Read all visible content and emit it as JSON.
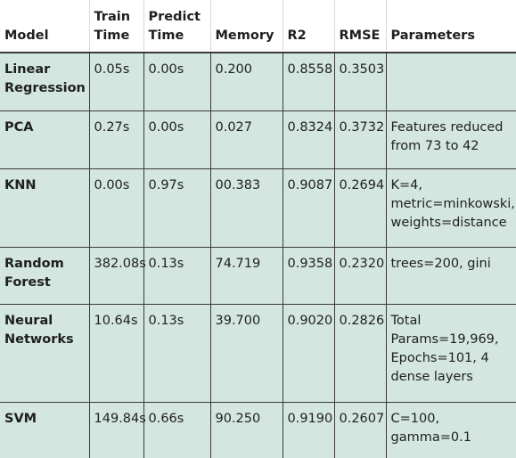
{
  "table": {
    "columns": {
      "model": "Model",
      "train_time": "Train Time",
      "predict_time": "Predict Time",
      "memory": "Memory",
      "r2": "R2",
      "rmse": "RMSE",
      "parameters": "Parameters"
    },
    "rows": [
      {
        "model": "Linear Regression",
        "train_time": "0.05s",
        "predict_time": "0.00s",
        "memory": "0.200",
        "r2": "0.8558",
        "rmse": "0.3503",
        "parameters": ""
      },
      {
        "model": "PCA",
        "train_time": "0.27s",
        "predict_time": "0.00s",
        "memory": "0.027",
        "r2": "0.8324",
        "rmse": "0.3732",
        "parameters": "Features reduced from 73 to 42"
      },
      {
        "model": "KNN",
        "train_time": "0.00s",
        "predict_time": "0.97s",
        "memory": "00.383",
        "r2": "0.9087",
        "rmse": "0.2694",
        "parameters": "K=4, metric=minkowski, weights=distance"
      },
      {
        "model": "Random Forest",
        "train_time": "382.08s",
        "predict_time": "0.13s",
        "memory": "74.719",
        "r2": "0.9358",
        "rmse": "0.2320",
        "parameters": "trees=200, gini"
      },
      {
        "model": "Neural Networks",
        "train_time": "10.64s",
        "predict_time": "0.13s",
        "memory": "39.700",
        "r2": "0.9020",
        "rmse": "0.2826",
        "parameters": "Total Params=19,969, Epochs=101, 4 dense layers"
      },
      {
        "model": "SVM",
        "train_time": "149.84s",
        "predict_time": "0.66s",
        "memory": "90.250",
        "r2": "0.9190",
        "rmse": "0.2607",
        "parameters": "C=100, gamma=0.1"
      }
    ]
  },
  "colors": {
    "cell_background": "#d3e6df",
    "grid_line": "#3a3a3a"
  }
}
